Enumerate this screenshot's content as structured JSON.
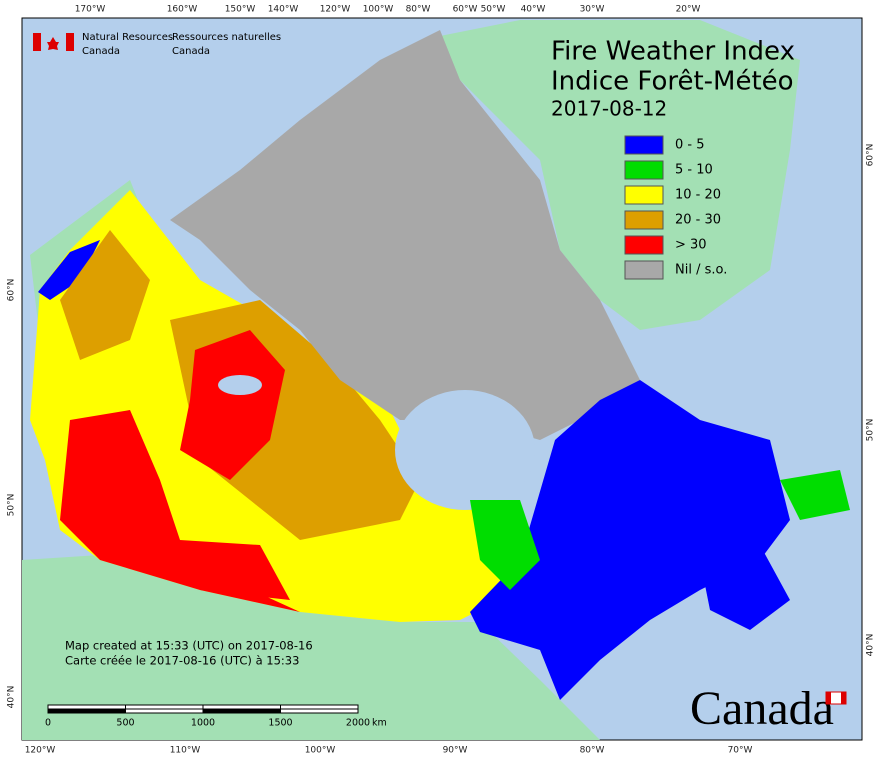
{
  "header": {
    "title": "Fire Weather Index",
    "subtitle": "Indice Forêt-Météo",
    "date": "2017-08-12"
  },
  "agency": {
    "en_line1": "Natural Resources",
    "en_line2": "Canada",
    "fr_line1": "Ressources naturelles",
    "fr_line2": "Canada"
  },
  "legend": [
    {
      "label": "0 - 5",
      "color": "#0000ff"
    },
    {
      "label": "5 - 10",
      "color": "#00dd00"
    },
    {
      "label": "10 - 20",
      "color": "#ffff00"
    },
    {
      "label": "20 - 30",
      "color": "#dd9f00"
    },
    {
      "label": "> 30",
      "color": "#ff0000"
    },
    {
      "label": "Nil / s.o.",
      "color": "#a8a8a8"
    }
  ],
  "credits": [
    "Map created at 15:33 (UTC) on 2017-08-16",
    "Carte créée le 2017-08-16 (UTC) à 15:33"
  ],
  "scale_bar": {
    "ticks": [
      0,
      500,
      1000,
      1500,
      2000
    ],
    "unit": "km"
  },
  "graticule": {
    "top": [
      "170°W",
      "160°W",
      "150°W",
      "140°W",
      "120°W",
      "100°W",
      "80°W",
      "60°W",
      "50°W",
      "40°W",
      "30°W",
      "20°W"
    ],
    "bottom": [
      "120°W",
      "110°W",
      "100°W",
      "90°W",
      "80°W",
      "70°W"
    ],
    "left": [
      "60°N",
      "50°N",
      "40°N"
    ],
    "right": [
      "60°N",
      "50°N",
      "40°N"
    ]
  },
  "wordmark": "Canada"
}
